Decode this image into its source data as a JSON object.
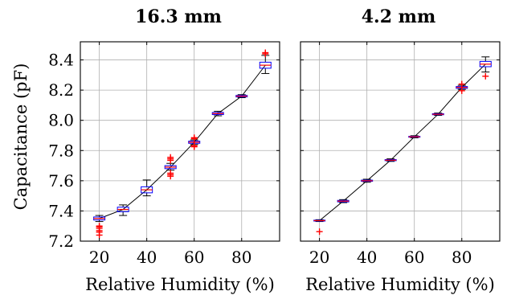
{
  "chart_data": [
    {
      "type": "box",
      "title": "16.3 mm",
      "xlabel": "Relative Humidity (%)",
      "ylabel": "Capacitance (pF)",
      "xlim": [
        12,
        96
      ],
      "ylim": [
        7.2,
        8.52
      ],
      "xticks": [
        "20",
        "40",
        "60",
        "80"
      ],
      "yticks": [
        "7.2",
        "7.4",
        "7.6",
        "7.8",
        "8.0",
        "8.2",
        "8.4"
      ],
      "grid": true,
      "colors": {
        "box": "#0000ff",
        "median": "#ff0000",
        "outlier": "#ff0000",
        "trend": "#000000"
      },
      "boxes": [
        {
          "x": 20,
          "whisker_low": 7.33,
          "q1": 7.34,
          "median": 7.35,
          "q3": 7.36,
          "whisker_high": 7.37,
          "outliers": [
            7.24,
            7.26,
            7.27,
            7.285,
            7.295,
            7.3
          ]
        },
        {
          "x": 30,
          "whisker_low": 7.37,
          "q1": 7.395,
          "median": 7.41,
          "q3": 7.425,
          "whisker_high": 7.44,
          "outliers": []
        },
        {
          "x": 40,
          "whisker_low": 7.5,
          "q1": 7.52,
          "median": 7.54,
          "q3": 7.56,
          "whisker_high": 7.605,
          "outliers": []
        },
        {
          "x": 50,
          "whisker_low": 7.67,
          "q1": 7.68,
          "median": 7.69,
          "q3": 7.7,
          "whisker_high": 7.715,
          "outliers": [
            7.63,
            7.64,
            7.65,
            7.735,
            7.745,
            7.755
          ]
        },
        {
          "x": 60,
          "whisker_low": 7.84,
          "q1": 7.848,
          "median": 7.855,
          "q3": 7.862,
          "whisker_high": 7.87,
          "outliers": [
            7.825,
            7.832,
            7.878,
            7.885
          ]
        },
        {
          "x": 70,
          "whisker_low": 8.03,
          "q1": 8.038,
          "median": 8.045,
          "q3": 8.052,
          "whisker_high": 8.06,
          "outliers": []
        },
        {
          "x": 80,
          "whisker_low": 8.15,
          "q1": 8.155,
          "median": 8.16,
          "q3": 8.165,
          "whisker_high": 8.17,
          "outliers": []
        },
        {
          "x": 90,
          "whisker_low": 8.31,
          "q1": 8.345,
          "median": 8.365,
          "q3": 8.385,
          "whisker_high": 8.43,
          "outliers": [
            8.44,
            8.448
          ]
        }
      ]
    },
    {
      "type": "box",
      "title": "4.2 mm",
      "xlabel": "Relative Humidity (%)",
      "ylabel": "",
      "xlim": [
        12,
        96
      ],
      "ylim": [
        7.2,
        8.52
      ],
      "xticks": [
        "20",
        "40",
        "60",
        "80"
      ],
      "yticks": [],
      "grid": true,
      "colors": {
        "box": "#0000ff",
        "median": "#ff0000",
        "outlier": "#ff0000",
        "trend": "#000000"
      },
      "boxes": [
        {
          "x": 20,
          "whisker_low": 7.33,
          "q1": 7.333,
          "median": 7.336,
          "q3": 7.339,
          "whisker_high": 7.342,
          "outliers": [
            7.263
          ]
        },
        {
          "x": 30,
          "whisker_low": 7.455,
          "q1": 7.46,
          "median": 7.465,
          "q3": 7.47,
          "whisker_high": 7.475,
          "outliers": []
        },
        {
          "x": 40,
          "whisker_low": 7.59,
          "q1": 7.596,
          "median": 7.6,
          "q3": 7.604,
          "whisker_high": 7.61,
          "outliers": []
        },
        {
          "x": 50,
          "whisker_low": 7.728,
          "q1": 7.733,
          "median": 7.736,
          "q3": 7.74,
          "whisker_high": 7.745,
          "outliers": []
        },
        {
          "x": 60,
          "whisker_low": 7.884,
          "q1": 7.888,
          "median": 7.891,
          "q3": 7.894,
          "whisker_high": 7.898,
          "outliers": []
        },
        {
          "x": 70,
          "whisker_low": 8.033,
          "q1": 8.037,
          "median": 8.04,
          "q3": 8.044,
          "whisker_high": 8.048,
          "outliers": []
        },
        {
          "x": 80,
          "whisker_low": 8.205,
          "q1": 8.212,
          "median": 8.218,
          "q3": 8.224,
          "whisker_high": 8.232,
          "outliers": [
            8.196,
            8.24
          ]
        },
        {
          "x": 90,
          "whisker_low": 8.32,
          "q1": 8.355,
          "median": 8.372,
          "q3": 8.39,
          "whisker_high": 8.42,
          "outliers": [
            8.292
          ]
        }
      ]
    }
  ]
}
